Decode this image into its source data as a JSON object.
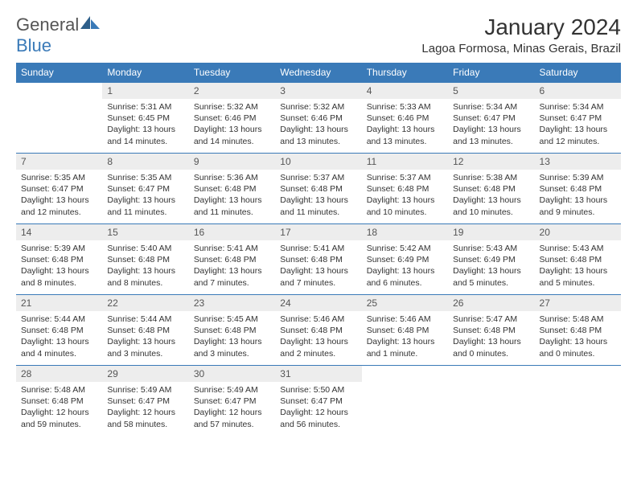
{
  "logo": {
    "text1": "General",
    "text2": "Blue"
  },
  "title": "January 2024",
  "location": "Lagoa Formosa, Minas Gerais, Brazil",
  "colors": {
    "header_bg": "#3a7ab8",
    "header_text": "#ffffff",
    "daynum_bg": "#ededed",
    "border": "#3a7ab8",
    "logo_gray": "#555555",
    "logo_blue": "#3a7ab8"
  },
  "weekdays": [
    "Sunday",
    "Monday",
    "Tuesday",
    "Wednesday",
    "Thursday",
    "Friday",
    "Saturday"
  ],
  "weeks": [
    [
      {
        "n": "",
        "sun": "",
        "set": "",
        "dl": ""
      },
      {
        "n": "1",
        "sun": "Sunrise: 5:31 AM",
        "set": "Sunset: 6:45 PM",
        "dl": "Daylight: 13 hours and 14 minutes."
      },
      {
        "n": "2",
        "sun": "Sunrise: 5:32 AM",
        "set": "Sunset: 6:46 PM",
        "dl": "Daylight: 13 hours and 14 minutes."
      },
      {
        "n": "3",
        "sun": "Sunrise: 5:32 AM",
        "set": "Sunset: 6:46 PM",
        "dl": "Daylight: 13 hours and 13 minutes."
      },
      {
        "n": "4",
        "sun": "Sunrise: 5:33 AM",
        "set": "Sunset: 6:46 PM",
        "dl": "Daylight: 13 hours and 13 minutes."
      },
      {
        "n": "5",
        "sun": "Sunrise: 5:34 AM",
        "set": "Sunset: 6:47 PM",
        "dl": "Daylight: 13 hours and 13 minutes."
      },
      {
        "n": "6",
        "sun": "Sunrise: 5:34 AM",
        "set": "Sunset: 6:47 PM",
        "dl": "Daylight: 13 hours and 12 minutes."
      }
    ],
    [
      {
        "n": "7",
        "sun": "Sunrise: 5:35 AM",
        "set": "Sunset: 6:47 PM",
        "dl": "Daylight: 13 hours and 12 minutes."
      },
      {
        "n": "8",
        "sun": "Sunrise: 5:35 AM",
        "set": "Sunset: 6:47 PM",
        "dl": "Daylight: 13 hours and 11 minutes."
      },
      {
        "n": "9",
        "sun": "Sunrise: 5:36 AM",
        "set": "Sunset: 6:48 PM",
        "dl": "Daylight: 13 hours and 11 minutes."
      },
      {
        "n": "10",
        "sun": "Sunrise: 5:37 AM",
        "set": "Sunset: 6:48 PM",
        "dl": "Daylight: 13 hours and 11 minutes."
      },
      {
        "n": "11",
        "sun": "Sunrise: 5:37 AM",
        "set": "Sunset: 6:48 PM",
        "dl": "Daylight: 13 hours and 10 minutes."
      },
      {
        "n": "12",
        "sun": "Sunrise: 5:38 AM",
        "set": "Sunset: 6:48 PM",
        "dl": "Daylight: 13 hours and 10 minutes."
      },
      {
        "n": "13",
        "sun": "Sunrise: 5:39 AM",
        "set": "Sunset: 6:48 PM",
        "dl": "Daylight: 13 hours and 9 minutes."
      }
    ],
    [
      {
        "n": "14",
        "sun": "Sunrise: 5:39 AM",
        "set": "Sunset: 6:48 PM",
        "dl": "Daylight: 13 hours and 8 minutes."
      },
      {
        "n": "15",
        "sun": "Sunrise: 5:40 AM",
        "set": "Sunset: 6:48 PM",
        "dl": "Daylight: 13 hours and 8 minutes."
      },
      {
        "n": "16",
        "sun": "Sunrise: 5:41 AM",
        "set": "Sunset: 6:48 PM",
        "dl": "Daylight: 13 hours and 7 minutes."
      },
      {
        "n": "17",
        "sun": "Sunrise: 5:41 AM",
        "set": "Sunset: 6:48 PM",
        "dl": "Daylight: 13 hours and 7 minutes."
      },
      {
        "n": "18",
        "sun": "Sunrise: 5:42 AM",
        "set": "Sunset: 6:49 PM",
        "dl": "Daylight: 13 hours and 6 minutes."
      },
      {
        "n": "19",
        "sun": "Sunrise: 5:43 AM",
        "set": "Sunset: 6:49 PM",
        "dl": "Daylight: 13 hours and 5 minutes."
      },
      {
        "n": "20",
        "sun": "Sunrise: 5:43 AM",
        "set": "Sunset: 6:48 PM",
        "dl": "Daylight: 13 hours and 5 minutes."
      }
    ],
    [
      {
        "n": "21",
        "sun": "Sunrise: 5:44 AM",
        "set": "Sunset: 6:48 PM",
        "dl": "Daylight: 13 hours and 4 minutes."
      },
      {
        "n": "22",
        "sun": "Sunrise: 5:44 AM",
        "set": "Sunset: 6:48 PM",
        "dl": "Daylight: 13 hours and 3 minutes."
      },
      {
        "n": "23",
        "sun": "Sunrise: 5:45 AM",
        "set": "Sunset: 6:48 PM",
        "dl": "Daylight: 13 hours and 3 minutes."
      },
      {
        "n": "24",
        "sun": "Sunrise: 5:46 AM",
        "set": "Sunset: 6:48 PM",
        "dl": "Daylight: 13 hours and 2 minutes."
      },
      {
        "n": "25",
        "sun": "Sunrise: 5:46 AM",
        "set": "Sunset: 6:48 PM",
        "dl": "Daylight: 13 hours and 1 minute."
      },
      {
        "n": "26",
        "sun": "Sunrise: 5:47 AM",
        "set": "Sunset: 6:48 PM",
        "dl": "Daylight: 13 hours and 0 minutes."
      },
      {
        "n": "27",
        "sun": "Sunrise: 5:48 AM",
        "set": "Sunset: 6:48 PM",
        "dl": "Daylight: 13 hours and 0 minutes."
      }
    ],
    [
      {
        "n": "28",
        "sun": "Sunrise: 5:48 AM",
        "set": "Sunset: 6:48 PM",
        "dl": "Daylight: 12 hours and 59 minutes."
      },
      {
        "n": "29",
        "sun": "Sunrise: 5:49 AM",
        "set": "Sunset: 6:47 PM",
        "dl": "Daylight: 12 hours and 58 minutes."
      },
      {
        "n": "30",
        "sun": "Sunrise: 5:49 AM",
        "set": "Sunset: 6:47 PM",
        "dl": "Daylight: 12 hours and 57 minutes."
      },
      {
        "n": "31",
        "sun": "Sunrise: 5:50 AM",
        "set": "Sunset: 6:47 PM",
        "dl": "Daylight: 12 hours and 56 minutes."
      },
      {
        "n": "",
        "sun": "",
        "set": "",
        "dl": ""
      },
      {
        "n": "",
        "sun": "",
        "set": "",
        "dl": ""
      },
      {
        "n": "",
        "sun": "",
        "set": "",
        "dl": ""
      }
    ]
  ]
}
